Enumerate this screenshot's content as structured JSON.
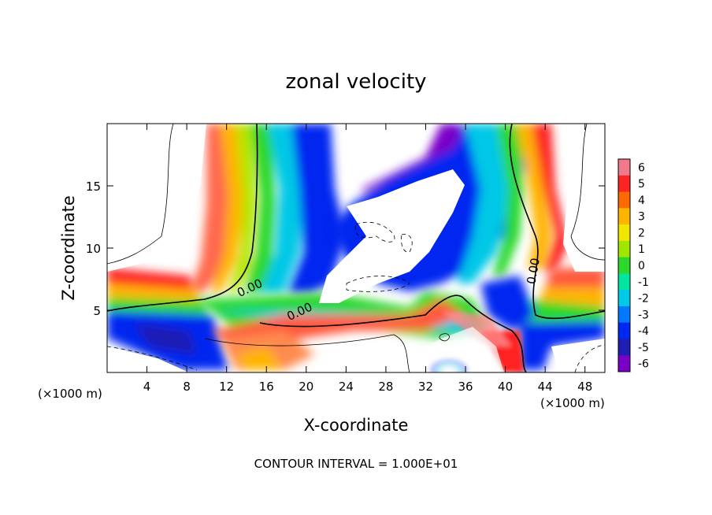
{
  "chart_data": {
    "type": "heatmap",
    "title": "zonal velocity",
    "xlabel": "X-coordinate",
    "ylabel": "Z-coordinate",
    "x_unit_left": "(×1000 m)",
    "x_unit_right": "(×1000 m)",
    "footer": "CONTOUR INTERVAL = 1.000E+01",
    "xlim": [
      0,
      50
    ],
    "ylim": [
      0,
      20
    ],
    "x_ticks": [
      4,
      8,
      12,
      16,
      20,
      24,
      28,
      32,
      36,
      40,
      44,
      48
    ],
    "y_ticks": [
      5,
      10,
      15
    ],
    "contour_labels": [
      {
        "text": "0.00",
        "x": 14.5,
        "y": 6.5
      },
      {
        "text": "0.00",
        "x": 19.5,
        "y": 4.6
      },
      {
        "text": "0.00",
        "x": 43.2,
        "y": 8.1
      }
    ],
    "colorbar": {
      "levels": [
        "6",
        "5",
        "4",
        "3",
        "2",
        "1",
        "0",
        "-1",
        "-2",
        "-3",
        "-4",
        "-5",
        "-6"
      ],
      "colors": [
        "#f07a8c",
        "#ff2424",
        "#ff6a00",
        "#ffb400",
        "#f0e600",
        "#a0e600",
        "#2cd82c",
        "#00e6a0",
        "#00c8e6",
        "#0078ff",
        "#0028f0",
        "#1e1eb4",
        "#7a00c8"
      ]
    }
  }
}
